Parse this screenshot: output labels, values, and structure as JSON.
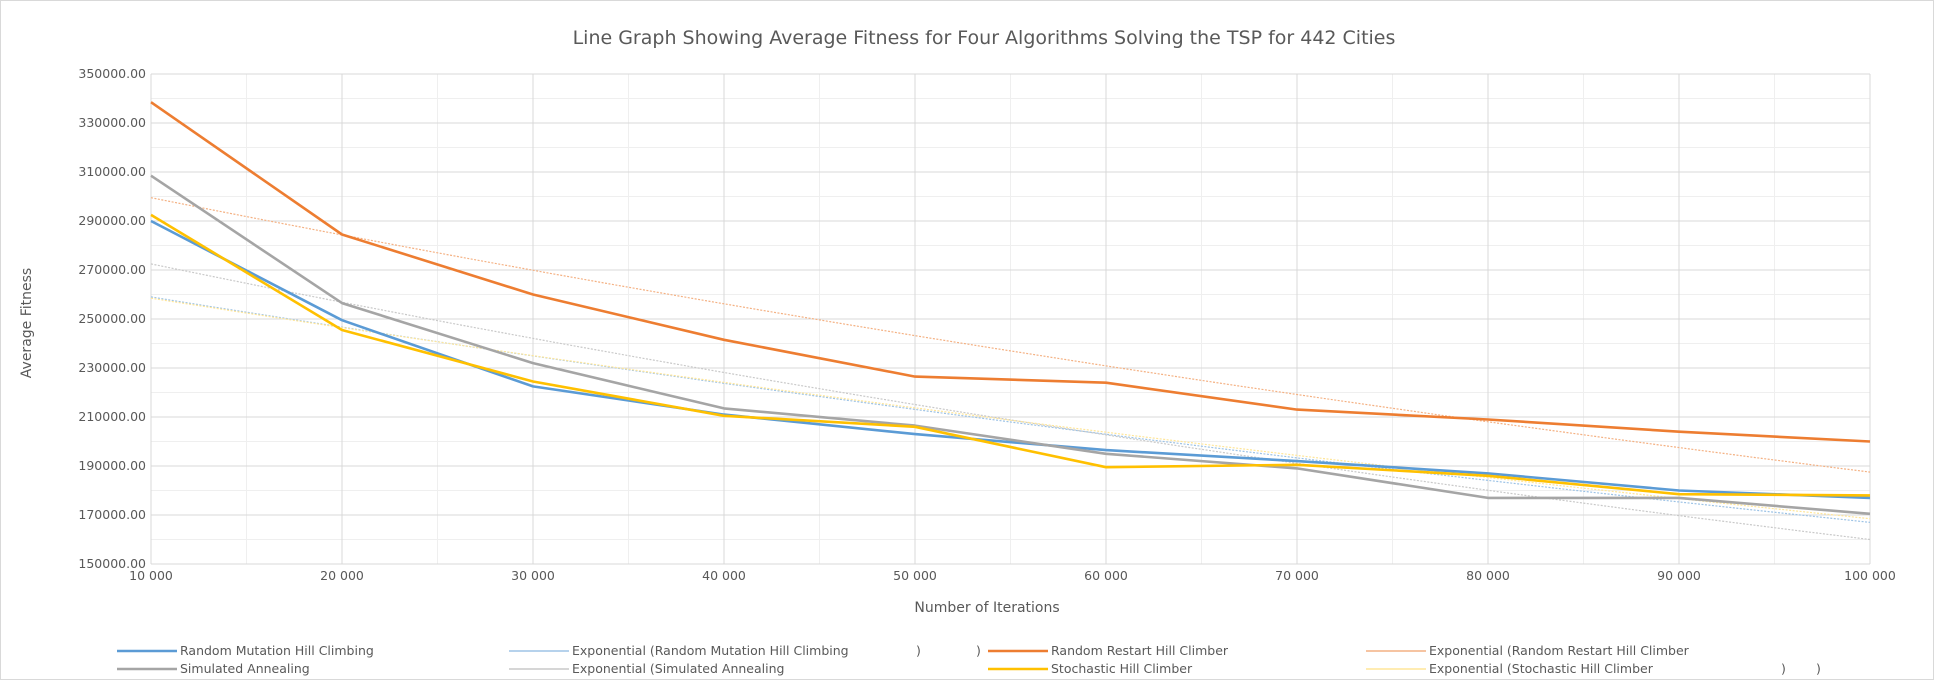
{
  "chart_data": {
    "type": "line",
    "title": "Line Graph Showing Average Fitness for Four Algorithms Solving the TSP for 442 Cities",
    "xlabel": "Number of Iterations",
    "ylabel": "Average Fitness",
    "x": [
      10000,
      20000,
      30000,
      40000,
      50000,
      60000,
      70000,
      80000,
      90000,
      100000
    ],
    "x_tick_labels": [
      "10 000",
      "20 000",
      "30 000",
      "40 000",
      "50 000",
      "60 000",
      "70 000",
      "80 000",
      "90 000",
      "100 000"
    ],
    "xlim": [
      10000,
      100000
    ],
    "ylim": [
      150000,
      350000
    ],
    "y_ticks": [
      150000,
      170000,
      190000,
      210000,
      230000,
      250000,
      270000,
      290000,
      310000,
      330000,
      350000
    ],
    "y_tick_labels": [
      "150000.00",
      "170000.00",
      "190000.00",
      "210000.00",
      "230000.00",
      "250000.00",
      "270000.00",
      "290000.00",
      "310000.00",
      "330000.00",
      "350000.00"
    ],
    "grid": true,
    "legend_position": "bottom",
    "series": [
      {
        "name": "Random Mutation Hill Climbing",
        "color": "#5b9bd5",
        "values": [
          290000,
          249500,
          222500,
          211000,
          203000,
          196500,
          192000,
          187000,
          180000,
          177000
        ]
      },
      {
        "name": "Random Restart Hill Climber",
        "color": "#ed7d31",
        "values": [
          338500,
          284500,
          260000,
          241500,
          226500,
          224000,
          213000,
          209000,
          204000,
          200000
        ]
      },
      {
        "name": "Simulated Annealing",
        "color": "#a5a5a5",
        "values": [
          308500,
          256500,
          232000,
          213500,
          206500,
          195000,
          189000,
          177000,
          177000,
          170500
        ]
      },
      {
        "name": "Stochastic Hill Climber",
        "color": "#ffc000",
        "values": [
          292500,
          245500,
          224500,
          210500,
          206000,
          189500,
          190500,
          186000,
          178500,
          178000
        ]
      }
    ],
    "trendlines": [
      {
        "name": "Exponential (Random Mutation Hill Climbing",
        "suffix": ")",
        "color": "#9dc3e6",
        "start": 259000,
        "end": 167000
      },
      {
        "name": "Exponential (Random Restart Hill Climber",
        "suffix": ")",
        "color": "#f4b183",
        "start": 299500,
        "end": 187500
      },
      {
        "name": "Exponential (Simulated Annealing",
        "suffix": ")",
        "color": "#c9c9c9",
        "start": 272500,
        "end": 160000
      },
      {
        "name": "Exponential (Stochastic Hill Climber",
        "suffix": ")",
        "color": "#ffe699",
        "start": 258500,
        "end": 168500
      }
    ],
    "legend_order": [
      "s0",
      "t0",
      "s1",
      "t1",
      "s2",
      "t2",
      "s3",
      "t3"
    ]
  }
}
